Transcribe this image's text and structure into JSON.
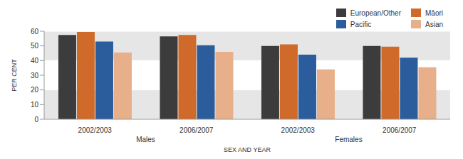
{
  "chart_data": {
    "type": "bar",
    "categories": [
      "2002/2003",
      "2006/2007",
      "2002/2003",
      "2006/2007"
    ],
    "groups": [
      "Males",
      "Females"
    ],
    "x_label": "SEX AND YEAR",
    "y_label": "PER CENT",
    "series": [
      {
        "name": "European/Other",
        "color": "#3c3c3c",
        "values": [
          57.5,
          56.5,
          50,
          50
        ]
      },
      {
        "name": "Māori",
        "color": "#cf6a2a",
        "values": [
          59.5,
          57.5,
          51,
          49.5
        ]
      },
      {
        "name": "Pacific",
        "color": "#2b5c9c",
        "values": [
          53,
          50.5,
          44,
          42
        ]
      },
      {
        "name": "Asian",
        "color": "#e8b08a",
        "values": [
          45.5,
          46,
          34,
          35.5
        ]
      }
    ],
    "ylim": [
      0,
      60
    ],
    "yticks": [
      0,
      10,
      20,
      30,
      40,
      50,
      60
    ],
    "grid": true,
    "legend": "top-right"
  }
}
